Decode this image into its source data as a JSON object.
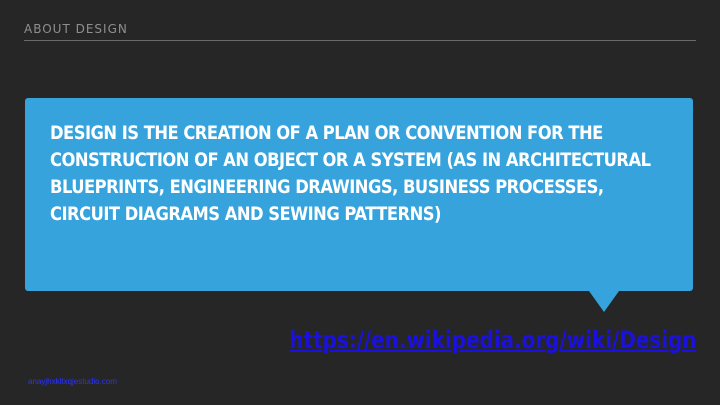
{
  "header": {
    "title": "ABOUT DESIGN"
  },
  "callout": {
    "text": "DESIGN IS THE CREATION OF A PLAN OR CONVENTION FOR THE CONSTRUCTION OF AN OBJECT OR A SYSTEM (AS IN ARCHITECTURAL BLUEPRINTS, ENGINEERING DRAWINGS, BUSINESS PROCESSES, CIRCUIT DIAGRAMS AND SEWING PATTERNS)"
  },
  "source": {
    "link_text": "https://en.wikipedia.org/wiki/Design"
  },
  "footer": {
    "link_text": "anayjhxkltxqjestudio.com"
  },
  "colors": {
    "background": "#262626",
    "callout": "#36a3dc",
    "link": "#1a10e0"
  }
}
